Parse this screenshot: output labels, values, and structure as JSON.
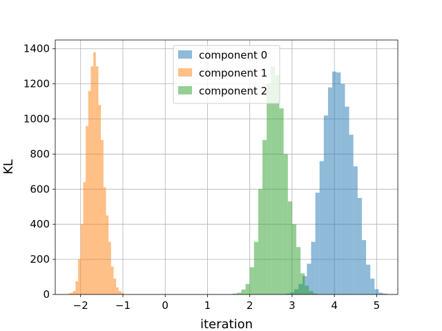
{
  "chart_data": {
    "type": "bar",
    "subtype": "histogram",
    "xlabel": "iteration",
    "ylabel": "KL",
    "xlim": [
      -2.6,
      5.5
    ],
    "ylim": [
      0,
      1450
    ],
    "xticks": [
      -2,
      -1,
      0,
      1,
      2,
      3,
      4,
      5
    ],
    "yticks": [
      0,
      200,
      400,
      600,
      800,
      1000,
      1200,
      1400
    ],
    "grid": true,
    "legend_position": "upper-center",
    "series": [
      {
        "name": "component 0",
        "color": "#1f77b4",
        "opacity": 0.5,
        "bin_start": 2.85,
        "bin_width": 0.1,
        "values": [
          5,
          12,
          30,
          60,
          105,
          175,
          300,
          580,
          760,
          1020,
          1180,
          1270,
          1265,
          1200,
          1070,
          910,
          730,
          550,
          310,
          170,
          90,
          30,
          10,
          5
        ]
      },
      {
        "name": "component 1",
        "color": "#ff7f0e",
        "opacity": 0.5,
        "bin_start": -2.3,
        "bin_width": 0.06,
        "values": [
          5,
          10,
          20,
          75,
          200,
          400,
          640,
          960,
          1160,
          1300,
          1380,
          1300,
          1080,
          880,
          610,
          450,
          300,
          160,
          90,
          40,
          20,
          10
        ]
      },
      {
        "name": "component 2",
        "color": "#2ca02c",
        "opacity": 0.5,
        "bin_start": 1.6,
        "bin_width": 0.1,
        "values": [
          5,
          10,
          28,
          60,
          155,
          300,
          600,
          880,
          1200,
          1300,
          1250,
          1060,
          800,
          530,
          400,
          270,
          120,
          50,
          20,
          5
        ]
      }
    ]
  }
}
